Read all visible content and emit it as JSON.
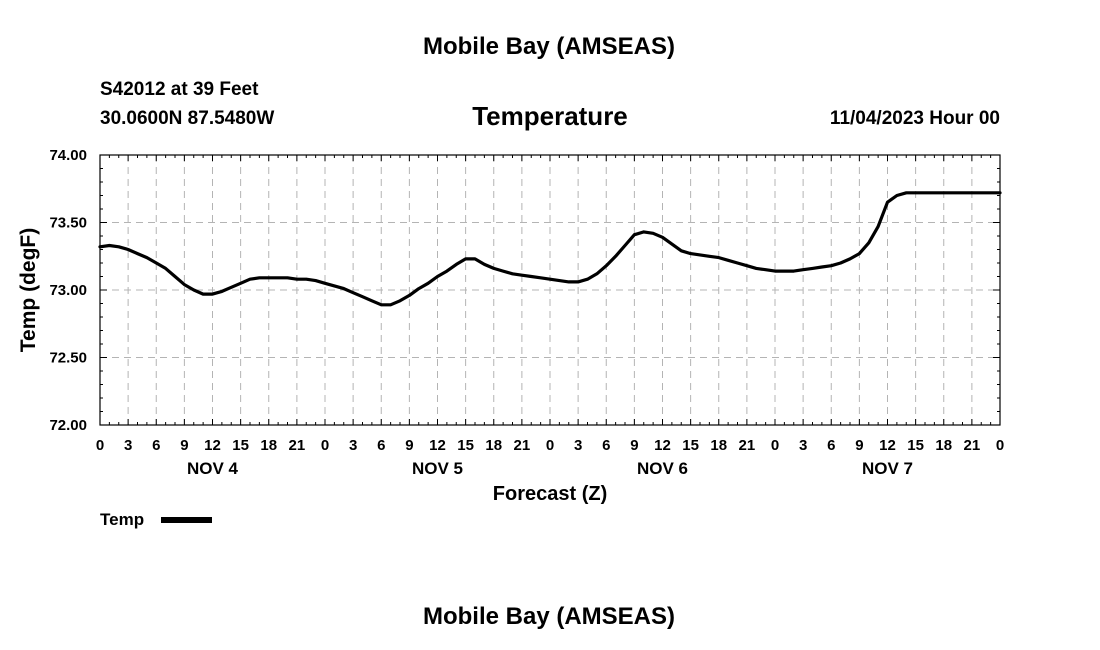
{
  "header": {
    "title": "Mobile Bay (AMSEAS)",
    "station": "S42012 at 39 Feet",
    "coords": "30.0600N  87.5480W",
    "variable": "Temperature",
    "run": "11/04/2023 Hour 00"
  },
  "footer": {
    "title": "Mobile Bay (AMSEAS)"
  },
  "chart_data": {
    "type": "line",
    "xlabel": "Forecast (Z)",
    "ylabel": "Temp (degF)",
    "ylim": [
      72.0,
      74.0
    ],
    "yticks": [
      "72.00",
      "72.50",
      "73.00",
      "73.50",
      "74.00"
    ],
    "xlim_hours": [
      0,
      96
    ],
    "xtick_labels": [
      "0",
      "3",
      "6",
      "9",
      "12",
      "15",
      "18",
      "21",
      "0",
      "3",
      "6",
      "9",
      "12",
      "15",
      "18",
      "21",
      "0",
      "3",
      "6",
      "9",
      "12",
      "15",
      "18",
      "21",
      "0",
      "3",
      "6",
      "9",
      "12",
      "15",
      "18",
      "21",
      "0"
    ],
    "day_labels": [
      "NOV 4",
      "NOV 5",
      "NOV 6",
      "NOV 7"
    ],
    "grid": true,
    "legend_position": "bottom-left",
    "series": [
      {
        "name": "Temp",
        "color": "#000000",
        "x": [
          0,
          1,
          2,
          3,
          4,
          5,
          6,
          7,
          8,
          9,
          10,
          11,
          12,
          13,
          14,
          15,
          16,
          17,
          18,
          19,
          20,
          21,
          22,
          23,
          24,
          25,
          26,
          27,
          28,
          29,
          30,
          31,
          32,
          33,
          34,
          35,
          36,
          37,
          38,
          39,
          40,
          41,
          42,
          43,
          44,
          45,
          46,
          47,
          48,
          49,
          50,
          51,
          52,
          53,
          54,
          55,
          56,
          57,
          58,
          59,
          60,
          61,
          62,
          63,
          64,
          65,
          66,
          67,
          68,
          69,
          70,
          71,
          72,
          73,
          74,
          75,
          76,
          77,
          78,
          79,
          80,
          81,
          82,
          83,
          84,
          85,
          86,
          87,
          88,
          89,
          90,
          91,
          92,
          93,
          94,
          95,
          96
        ],
        "y": [
          73.32,
          73.33,
          73.32,
          73.3,
          73.27,
          73.24,
          73.2,
          73.16,
          73.1,
          73.04,
          73.0,
          72.97,
          72.97,
          72.99,
          73.02,
          73.05,
          73.08,
          73.09,
          73.09,
          73.09,
          73.09,
          73.08,
          73.08,
          73.07,
          73.05,
          73.03,
          73.01,
          72.98,
          72.95,
          72.92,
          72.89,
          72.89,
          72.92,
          72.96,
          73.01,
          73.05,
          73.1,
          73.14,
          73.19,
          73.23,
          73.23,
          73.19,
          73.16,
          73.14,
          73.12,
          73.11,
          73.1,
          73.09,
          73.08,
          73.07,
          73.06,
          73.06,
          73.08,
          73.12,
          73.18,
          73.25,
          73.33,
          73.41,
          73.43,
          73.42,
          73.39,
          73.34,
          73.29,
          73.27,
          73.26,
          73.25,
          73.24,
          73.22,
          73.2,
          73.18,
          73.16,
          73.15,
          73.14,
          73.14,
          73.14,
          73.15,
          73.16,
          73.17,
          73.18,
          73.2,
          73.23,
          73.27,
          73.35,
          73.47,
          73.65,
          73.7,
          73.72,
          73.72,
          73.72,
          73.72,
          73.72,
          73.72,
          73.72,
          73.72,
          73.72,
          73.72,
          73.72
        ]
      }
    ]
  }
}
